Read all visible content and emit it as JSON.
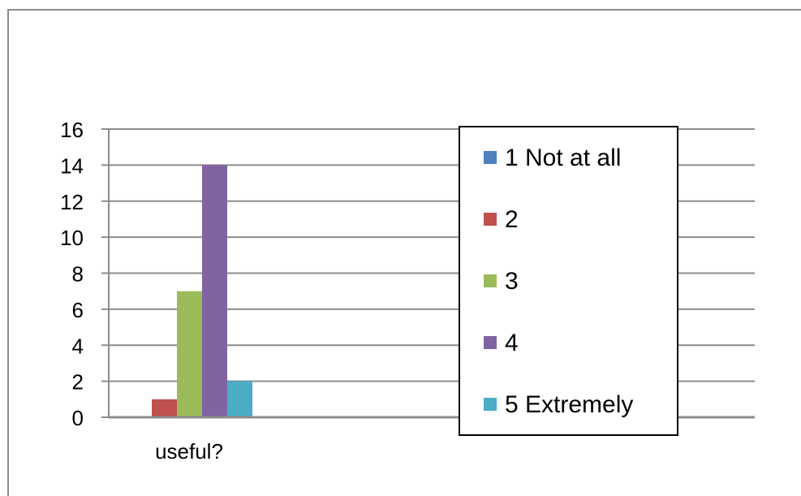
{
  "chart_data": {
    "type": "bar",
    "categories": [
      "useful?"
    ],
    "series": [
      {
        "name": "1 Not at all",
        "values": [
          0
        ],
        "color": "#4f81bd"
      },
      {
        "name": "2",
        "values": [
          1
        ],
        "color": "#c0504d"
      },
      {
        "name": "3",
        "values": [
          7
        ],
        "color": "#9bbb59"
      },
      {
        "name": "4",
        "values": [
          14
        ],
        "color": "#8064a2"
      },
      {
        "name": "5 Extremely",
        "values": [
          2
        ],
        "color": "#4bacc6"
      }
    ],
    "yticks": [
      "0",
      "2",
      "4",
      "6",
      "8",
      "10",
      "12",
      "14",
      "16"
    ],
    "ylim": [
      0,
      16
    ],
    "grid": true,
    "legend_position": "right"
  }
}
